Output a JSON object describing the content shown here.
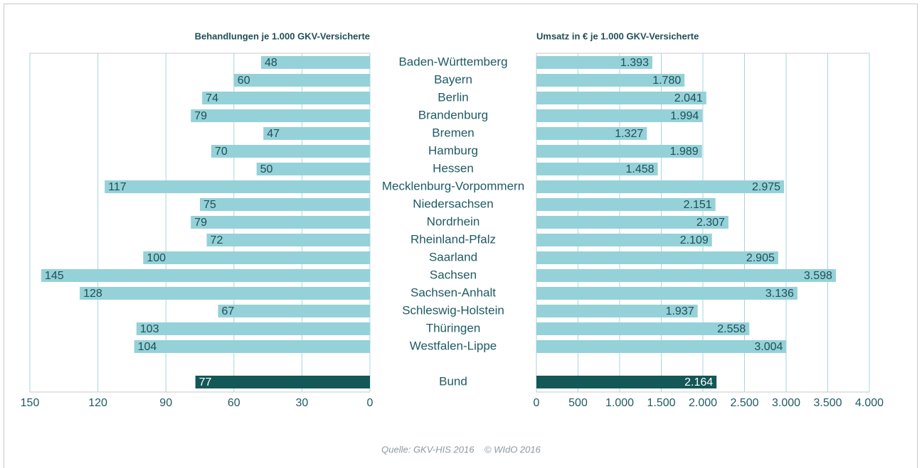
{
  "chart_data": [
    {
      "type": "bar",
      "orientation": "horizontal",
      "title": "Behandlungen je 1.000 GKV-Versicherte",
      "categories": [
        "Baden-Württemberg",
        "Bayern",
        "Berlin",
        "Brandenburg",
        "Bremen",
        "Hamburg",
        "Hessen",
        "Mecklenburg-Vorpommern",
        "Niedersachsen",
        "Nordrhein",
        "Rheinland-Pfalz",
        "Saarland",
        "Sachsen",
        "Sachsen-Anhalt",
        "Schleswig-Holstein",
        "Thüringen",
        "Westfalen-Lippe",
        "Bund"
      ],
      "values": [
        48,
        60,
        74,
        79,
        47,
        70,
        50,
        117,
        75,
        79,
        72,
        100,
        145,
        128,
        67,
        103,
        104,
        77
      ],
      "colors": [
        "#95d1d8",
        "#95d1d8",
        "#95d1d8",
        "#95d1d8",
        "#95d1d8",
        "#95d1d8",
        "#95d1d8",
        "#95d1d8",
        "#95d1d8",
        "#95d1d8",
        "#95d1d8",
        "#95d1d8",
        "#95d1d8",
        "#95d1d8",
        "#95d1d8",
        "#95d1d8",
        "#95d1d8",
        "#145757"
      ],
      "xlim": [
        150,
        0
      ],
      "xticks": [
        150,
        120,
        90,
        60,
        30,
        0
      ],
      "grid": true
    },
    {
      "type": "bar",
      "orientation": "horizontal",
      "title": "Umsatz in € je 1.000 GKV-Versicherte",
      "values": [
        1393,
        1780,
        2041,
        1994,
        1327,
        1989,
        1458,
        2975,
        2151,
        2307,
        2109,
        2905,
        3598,
        3136,
        1937,
        2558,
        3004,
        2164
      ],
      "value_labels": [
        "1.393",
        "1.780",
        "2.041",
        "1.994",
        "1.327",
        "1.989",
        "1.458",
        "2.975",
        "2.151",
        "2.307",
        "2.109",
        "2.905",
        "3.598",
        "3.136",
        "1.937",
        "2.558",
        "3.004",
        "2.164"
      ],
      "colors": [
        "#95d1d8",
        "#95d1d8",
        "#95d1d8",
        "#95d1d8",
        "#95d1d8",
        "#95d1d8",
        "#95d1d8",
        "#95d1d8",
        "#95d1d8",
        "#95d1d8",
        "#95d1d8",
        "#95d1d8",
        "#95d1d8",
        "#95d1d8",
        "#95d1d8",
        "#95d1d8",
        "#95d1d8",
        "#145757"
      ],
      "xlim": [
        0,
        4000
      ],
      "xticks": [
        0,
        500,
        {
          "value": 1000,
          "label": "1.000"
        },
        {
          "value": 1500,
          "label": "1.500"
        },
        {
          "value": 2000,
          "label": "2.000"
        },
        {
          "value": 2500,
          "label": "2.500"
        },
        {
          "value": 3000,
          "label": "3.000"
        },
        {
          "value": 3500,
          "label": "3.500"
        },
        {
          "value": 4000,
          "label": "4.000"
        }
      ],
      "grid": true
    }
  ],
  "source": "Quelle: GKV-HIS 2016    © WIdO 2016"
}
